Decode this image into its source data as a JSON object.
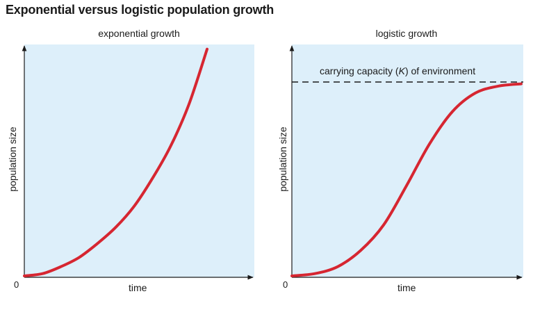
{
  "title": "Exponential versus logistic population growth",
  "colors": {
    "panel_bg": "#ddeffa",
    "curve": "#d62631",
    "axis": "#1a1a1a"
  },
  "chart_data": [
    {
      "type": "line",
      "title": "exponential growth",
      "xlabel": "time",
      "ylabel": "population size",
      "origin_label": "0",
      "x": [
        0,
        0.1,
        0.2,
        0.3,
        0.4,
        0.5,
        0.6,
        0.7,
        0.8,
        0.9,
        1.0
      ],
      "series": [
        {
          "values": [
            0.0,
            0.01,
            0.04,
            0.08,
            0.14,
            0.21,
            0.3,
            0.42,
            0.56,
            0.74,
            0.98
          ]
        }
      ],
      "grid": false,
      "legend": "none"
    },
    {
      "type": "line",
      "title": "logistic growth",
      "xlabel": "time",
      "ylabel": "population size",
      "origin_label": "0",
      "annotation": {
        "prefix": "carrying capacity (",
        "italic": "K",
        "suffix": ") of environment"
      },
      "carrying_capacity": 0.85,
      "x": [
        0,
        0.1,
        0.2,
        0.3,
        0.4,
        0.5,
        0.6,
        0.7,
        0.8,
        0.9,
        1.0
      ],
      "series": [
        {
          "values": [
            0.0,
            0.01,
            0.04,
            0.11,
            0.22,
            0.39,
            0.57,
            0.71,
            0.79,
            0.82,
            0.83
          ]
        }
      ],
      "grid": false,
      "legend": "none"
    }
  ]
}
